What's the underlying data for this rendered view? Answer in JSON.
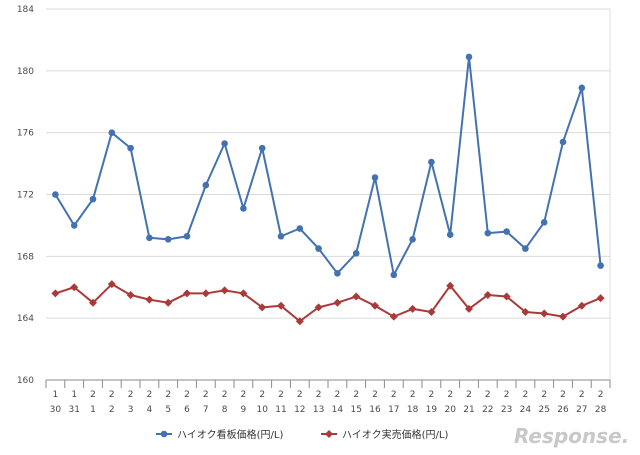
{
  "chart_data": {
    "type": "line",
    "categories": [
      [
        "1",
        "30"
      ],
      [
        "1",
        "31"
      ],
      [
        "2",
        "1"
      ],
      [
        "2",
        "2"
      ],
      [
        "2",
        "3"
      ],
      [
        "2",
        "4"
      ],
      [
        "2",
        "5"
      ],
      [
        "2",
        "6"
      ],
      [
        "2",
        "7"
      ],
      [
        "2",
        "8"
      ],
      [
        "2",
        "9"
      ],
      [
        "2",
        "10"
      ],
      [
        "2",
        "11"
      ],
      [
        "2",
        "12"
      ],
      [
        "2",
        "13"
      ],
      [
        "2",
        "14"
      ],
      [
        "2",
        "15"
      ],
      [
        "2",
        "16"
      ],
      [
        "2",
        "17"
      ],
      [
        "2",
        "18"
      ],
      [
        "2",
        "19"
      ],
      [
        "2",
        "20"
      ],
      [
        "2",
        "21"
      ],
      [
        "2",
        "22"
      ],
      [
        "2",
        "23"
      ],
      [
        "2",
        "24"
      ],
      [
        "2",
        "25"
      ],
      [
        "2",
        "26"
      ],
      [
        "2",
        "27"
      ],
      [
        "2",
        "28"
      ]
    ],
    "ylim": [
      160,
      184
    ],
    "yticks": [
      160,
      164,
      168,
      172,
      176,
      180,
      184
    ],
    "grid": true,
    "legend_position": "bottom",
    "series": [
      {
        "name": "ハイオク看板価格(円/L)",
        "color": "#4472b0",
        "marker": "circle",
        "values": [
          172.0,
          170.0,
          171.7,
          176.0,
          175.0,
          169.2,
          169.1,
          169.3,
          172.6,
          175.3,
          171.1,
          175.0,
          169.3,
          169.8,
          168.5,
          166.9,
          168.2,
          173.1,
          166.8,
          169.1,
          174.1,
          169.4,
          180.9,
          169.5,
          169.6,
          168.5,
          170.2,
          175.4,
          178.9,
          167.4
        ]
      },
      {
        "name": "ハイオク実売価格(円/L)",
        "color": "#aa3a3a",
        "marker": "diamond",
        "values": [
          165.6,
          166.0,
          165.0,
          166.2,
          165.5,
          165.2,
          165.0,
          165.6,
          165.6,
          165.8,
          165.6,
          164.7,
          164.8,
          163.8,
          164.7,
          165.0,
          165.4,
          164.8,
          164.1,
          164.6,
          164.4,
          166.1,
          164.6,
          165.5,
          165.4,
          164.4,
          164.3,
          164.1,
          164.8,
          165.3
        ]
      }
    ]
  },
  "watermark": "Response."
}
